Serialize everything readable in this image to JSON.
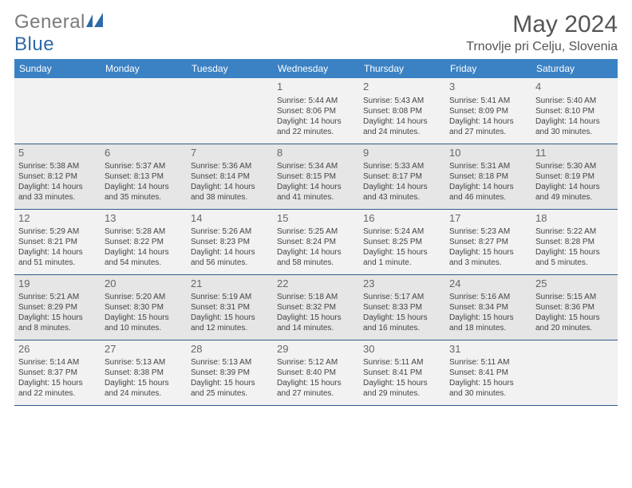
{
  "brand": {
    "part1": "General",
    "part2": "Blue"
  },
  "title": "May 2024",
  "location": "Trnovlje pri Celju, Slovenia",
  "colors": {
    "accent": "#3b82c4",
    "light_row": "#f2f2f2",
    "dark_row": "#e6e6e6",
    "divider": "#2d5c8a",
    "title_text": "#555555"
  },
  "day_headers": [
    "Sunday",
    "Monday",
    "Tuesday",
    "Wednesday",
    "Thursday",
    "Friday",
    "Saturday"
  ],
  "weeks": [
    [
      null,
      null,
      null,
      {
        "n": "1",
        "sr": "Sunrise: 5:44 AM",
        "ss": "Sunset: 8:06 PM",
        "d1": "Daylight: 14 hours",
        "d2": "and 22 minutes."
      },
      {
        "n": "2",
        "sr": "Sunrise: 5:43 AM",
        "ss": "Sunset: 8:08 PM",
        "d1": "Daylight: 14 hours",
        "d2": "and 24 minutes."
      },
      {
        "n": "3",
        "sr": "Sunrise: 5:41 AM",
        "ss": "Sunset: 8:09 PM",
        "d1": "Daylight: 14 hours",
        "d2": "and 27 minutes."
      },
      {
        "n": "4",
        "sr": "Sunrise: 5:40 AM",
        "ss": "Sunset: 8:10 PM",
        "d1": "Daylight: 14 hours",
        "d2": "and 30 minutes."
      }
    ],
    [
      {
        "n": "5",
        "sr": "Sunrise: 5:38 AM",
        "ss": "Sunset: 8:12 PM",
        "d1": "Daylight: 14 hours",
        "d2": "and 33 minutes."
      },
      {
        "n": "6",
        "sr": "Sunrise: 5:37 AM",
        "ss": "Sunset: 8:13 PM",
        "d1": "Daylight: 14 hours",
        "d2": "and 35 minutes."
      },
      {
        "n": "7",
        "sr": "Sunrise: 5:36 AM",
        "ss": "Sunset: 8:14 PM",
        "d1": "Daylight: 14 hours",
        "d2": "and 38 minutes."
      },
      {
        "n": "8",
        "sr": "Sunrise: 5:34 AM",
        "ss": "Sunset: 8:15 PM",
        "d1": "Daylight: 14 hours",
        "d2": "and 41 minutes."
      },
      {
        "n": "9",
        "sr": "Sunrise: 5:33 AM",
        "ss": "Sunset: 8:17 PM",
        "d1": "Daylight: 14 hours",
        "d2": "and 43 minutes."
      },
      {
        "n": "10",
        "sr": "Sunrise: 5:31 AM",
        "ss": "Sunset: 8:18 PM",
        "d1": "Daylight: 14 hours",
        "d2": "and 46 minutes."
      },
      {
        "n": "11",
        "sr": "Sunrise: 5:30 AM",
        "ss": "Sunset: 8:19 PM",
        "d1": "Daylight: 14 hours",
        "d2": "and 49 minutes."
      }
    ],
    [
      {
        "n": "12",
        "sr": "Sunrise: 5:29 AM",
        "ss": "Sunset: 8:21 PM",
        "d1": "Daylight: 14 hours",
        "d2": "and 51 minutes."
      },
      {
        "n": "13",
        "sr": "Sunrise: 5:28 AM",
        "ss": "Sunset: 8:22 PM",
        "d1": "Daylight: 14 hours",
        "d2": "and 54 minutes."
      },
      {
        "n": "14",
        "sr": "Sunrise: 5:26 AM",
        "ss": "Sunset: 8:23 PM",
        "d1": "Daylight: 14 hours",
        "d2": "and 56 minutes."
      },
      {
        "n": "15",
        "sr": "Sunrise: 5:25 AM",
        "ss": "Sunset: 8:24 PM",
        "d1": "Daylight: 14 hours",
        "d2": "and 58 minutes."
      },
      {
        "n": "16",
        "sr": "Sunrise: 5:24 AM",
        "ss": "Sunset: 8:25 PM",
        "d1": "Daylight: 15 hours",
        "d2": "and 1 minute."
      },
      {
        "n": "17",
        "sr": "Sunrise: 5:23 AM",
        "ss": "Sunset: 8:27 PM",
        "d1": "Daylight: 15 hours",
        "d2": "and 3 minutes."
      },
      {
        "n": "18",
        "sr": "Sunrise: 5:22 AM",
        "ss": "Sunset: 8:28 PM",
        "d1": "Daylight: 15 hours",
        "d2": "and 5 minutes."
      }
    ],
    [
      {
        "n": "19",
        "sr": "Sunrise: 5:21 AM",
        "ss": "Sunset: 8:29 PM",
        "d1": "Daylight: 15 hours",
        "d2": "and 8 minutes."
      },
      {
        "n": "20",
        "sr": "Sunrise: 5:20 AM",
        "ss": "Sunset: 8:30 PM",
        "d1": "Daylight: 15 hours",
        "d2": "and 10 minutes."
      },
      {
        "n": "21",
        "sr": "Sunrise: 5:19 AM",
        "ss": "Sunset: 8:31 PM",
        "d1": "Daylight: 15 hours",
        "d2": "and 12 minutes."
      },
      {
        "n": "22",
        "sr": "Sunrise: 5:18 AM",
        "ss": "Sunset: 8:32 PM",
        "d1": "Daylight: 15 hours",
        "d2": "and 14 minutes."
      },
      {
        "n": "23",
        "sr": "Sunrise: 5:17 AM",
        "ss": "Sunset: 8:33 PM",
        "d1": "Daylight: 15 hours",
        "d2": "and 16 minutes."
      },
      {
        "n": "24",
        "sr": "Sunrise: 5:16 AM",
        "ss": "Sunset: 8:34 PM",
        "d1": "Daylight: 15 hours",
        "d2": "and 18 minutes."
      },
      {
        "n": "25",
        "sr": "Sunrise: 5:15 AM",
        "ss": "Sunset: 8:36 PM",
        "d1": "Daylight: 15 hours",
        "d2": "and 20 minutes."
      }
    ],
    [
      {
        "n": "26",
        "sr": "Sunrise: 5:14 AM",
        "ss": "Sunset: 8:37 PM",
        "d1": "Daylight: 15 hours",
        "d2": "and 22 minutes."
      },
      {
        "n": "27",
        "sr": "Sunrise: 5:13 AM",
        "ss": "Sunset: 8:38 PM",
        "d1": "Daylight: 15 hours",
        "d2": "and 24 minutes."
      },
      {
        "n": "28",
        "sr": "Sunrise: 5:13 AM",
        "ss": "Sunset: 8:39 PM",
        "d1": "Daylight: 15 hours",
        "d2": "and 25 minutes."
      },
      {
        "n": "29",
        "sr": "Sunrise: 5:12 AM",
        "ss": "Sunset: 8:40 PM",
        "d1": "Daylight: 15 hours",
        "d2": "and 27 minutes."
      },
      {
        "n": "30",
        "sr": "Sunrise: 5:11 AM",
        "ss": "Sunset: 8:41 PM",
        "d1": "Daylight: 15 hours",
        "d2": "and 29 minutes."
      },
      {
        "n": "31",
        "sr": "Sunrise: 5:11 AM",
        "ss": "Sunset: 8:41 PM",
        "d1": "Daylight: 15 hours",
        "d2": "and 30 minutes."
      },
      null
    ]
  ]
}
